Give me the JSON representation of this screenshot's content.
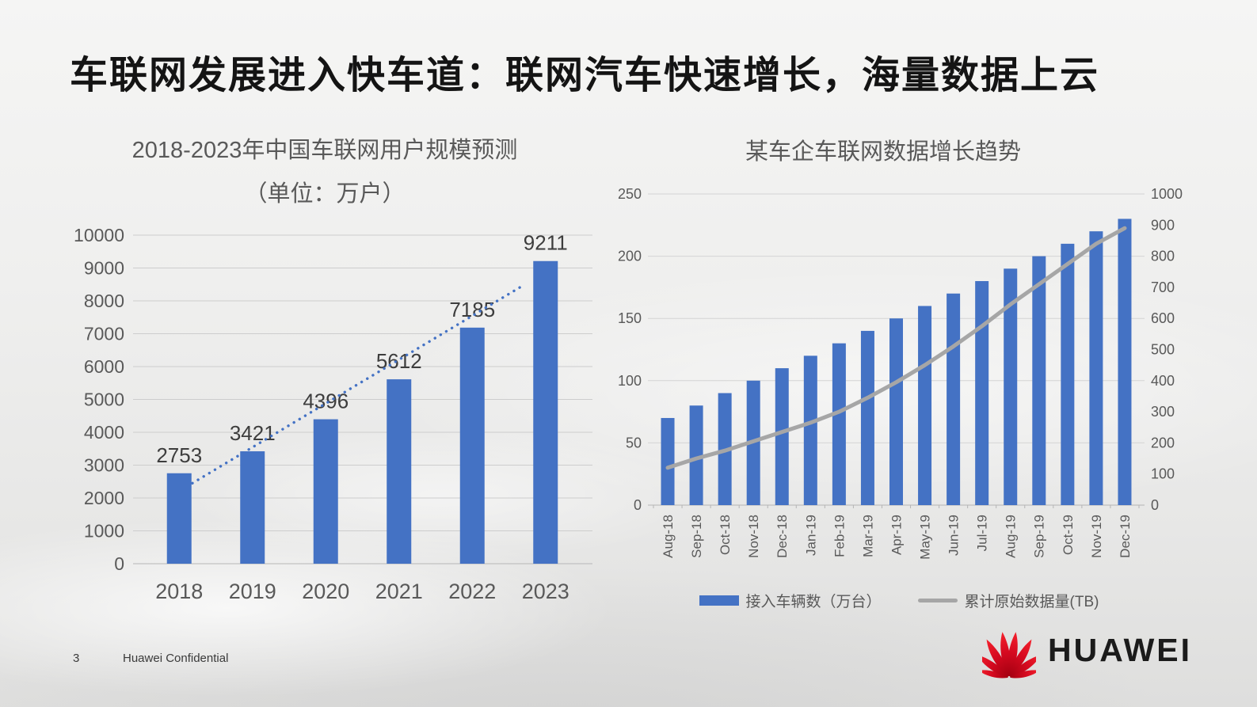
{
  "slide": {
    "title": "车联网发展进入快车道：联网汽车快速增长，海量数据上云",
    "footer": {
      "page_number": "3",
      "confidential_label": "Huawei Confidential"
    },
    "logo_text": "HUAWEI"
  },
  "colors": {
    "bar_blue": "#4472C4",
    "line_gray": "#A6A6A6",
    "axis_text": "#595959",
    "huawei_red": "#e8112d"
  },
  "chart_data": [
    {
      "type": "bar",
      "title": "2018-2023年中国车联网用户规模预测",
      "subtitle": "（单位：万户）",
      "categories": [
        "2018",
        "2019",
        "2020",
        "2021",
        "2022",
        "2023"
      ],
      "values": [
        2753,
        3421,
        4396,
        5612,
        7185,
        9211
      ],
      "ylim": [
        0,
        10000
      ],
      "ytick_step": 1000,
      "grid": true,
      "data_labels": true,
      "bar_color": "#4472C4",
      "trendline": {
        "style": "dotted",
        "color": "#4472C4",
        "u1": 0.68,
        "v1": 2450,
        "u2": 5.18,
        "v2": 8450
      }
    },
    {
      "type": "bar+line",
      "title": "某车企车联网数据增长趋势",
      "categories": [
        "Aug-18",
        "Sep-18",
        "Oct-18",
        "Nov-18",
        "Dec-18",
        "Jan-19",
        "Feb-19",
        "Mar-19",
        "Apr-19",
        "May-19",
        "Jun-19",
        "Jul-19",
        "Aug-19",
        "Sep-19",
        "Oct-19",
        "Nov-19",
        "Dec-19"
      ],
      "series": [
        {
          "name": "接入车辆数（万台）",
          "type": "bar",
          "axis": "left",
          "color": "#4472C4",
          "values": [
            70,
            80,
            90,
            100,
            110,
            120,
            130,
            140,
            150,
            160,
            170,
            180,
            190,
            200,
            210,
            220,
            230
          ]
        },
        {
          "name": "累计原始数据量(TB)",
          "type": "line",
          "axis": "right",
          "color": "#A6A6A6",
          "values": [
            120,
            150,
            175,
            205,
            235,
            265,
            300,
            345,
            395,
            450,
            510,
            575,
            645,
            710,
            775,
            840,
            890
          ]
        }
      ],
      "left_axis": {
        "lim": [
          0,
          250
        ],
        "step": 50
      },
      "right_axis": {
        "lim": [
          0,
          1000
        ],
        "step": 100
      },
      "grid": true,
      "legend_position": "bottom"
    }
  ]
}
